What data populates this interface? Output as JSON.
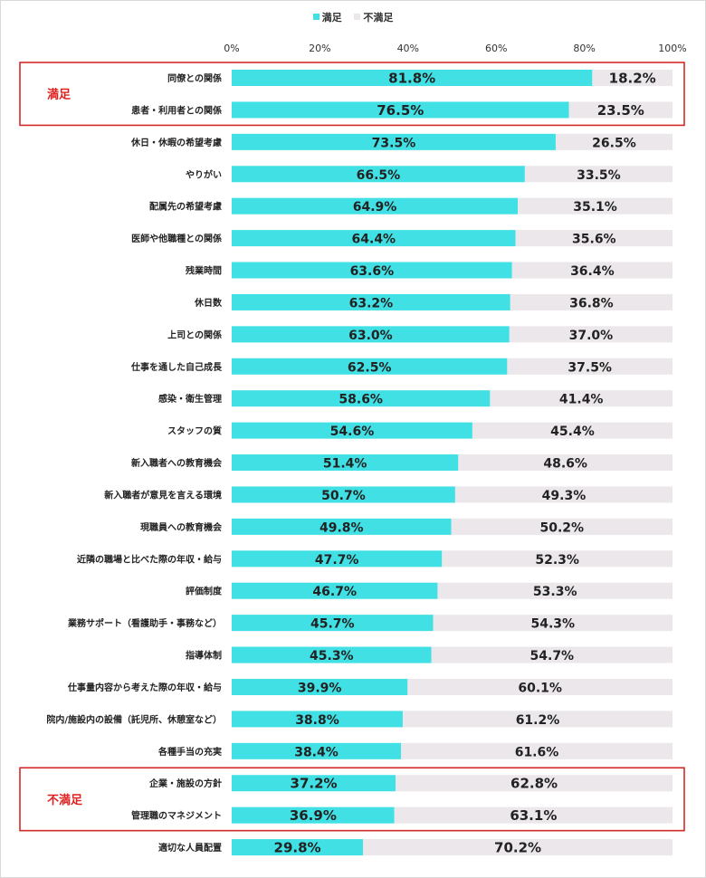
{
  "colors": {
    "sat": "#40e0e4",
    "unsat": "#ebe7ea",
    "highlight": "#d42a2a"
  },
  "legend": [
    {
      "label": "満足",
      "color": "#40e0e4",
      "icon": "square-swatch"
    },
    {
      "label": "不満足",
      "color": "#ebe7ea",
      "icon": "square-swatch"
    }
  ],
  "highlights": [
    {
      "label": "満足",
      "first": 0,
      "last": 1
    },
    {
      "label": "不満足",
      "first": 22,
      "last": 23
    }
  ],
  "chart_data": {
    "type": "bar",
    "orientation": "horizontal",
    "stacked": true,
    "percent": true,
    "xlim": [
      0,
      100
    ],
    "x_ticks": [
      "0%",
      "20%",
      "40%",
      "60%",
      "80%",
      "100%"
    ],
    "legend_position": "top-center",
    "grid": false,
    "categories": [
      "同僚との関係",
      "患者・利用者との関係",
      "休日・休暇の希望考慮",
      "やりがい",
      "配属先の希望考慮",
      "医師や他職種との関係",
      "残業時間",
      "休日数",
      "上司との関係",
      "仕事を通した自己成長",
      "感染・衛生管理",
      "スタッフの質",
      "新入職者への教育機会",
      "新入職者が意見を言える環境",
      "現職員への教育機会",
      "近隣の職場と比べた際の年収・給与",
      "評価制度",
      "業務サポート（看護助手・事務など）",
      "指導体制",
      "仕事量内容から考えた際の年収・給与",
      "院内/施設内の設備（託児所、休憩室など）",
      "各種手当の充実",
      "企業・施設の方針",
      "管理職のマネジメント",
      "適切な人員配置"
    ],
    "series": [
      {
        "name": "満足",
        "values": [
          81.8,
          76.5,
          73.5,
          66.5,
          64.9,
          64.4,
          63.6,
          63.2,
          63.0,
          62.5,
          58.6,
          54.6,
          51.4,
          50.7,
          49.8,
          47.7,
          46.7,
          45.7,
          45.3,
          39.9,
          38.8,
          38.4,
          37.2,
          36.9,
          29.8
        ],
        "labels": [
          "81.8%",
          "76.5%",
          "73.5%",
          "66.5%",
          "64.9%",
          "64.4%",
          "63.6%",
          "63.2%",
          "63.0%",
          "62.5%",
          "58.6%",
          "54.6%",
          "51.4%",
          "50.7%",
          "49.8%",
          "47.7%",
          "46.7%",
          "45.7%",
          "45.3%",
          "39.9%",
          "38.8%",
          "38.4%",
          "37.2%",
          "36.9%",
          "29.8%"
        ]
      },
      {
        "name": "不満足",
        "values": [
          18.2,
          23.5,
          26.5,
          33.5,
          35.1,
          35.6,
          36.4,
          36.8,
          37.0,
          37.5,
          41.4,
          45.4,
          48.6,
          49.3,
          50.2,
          52.3,
          53.3,
          54.3,
          54.7,
          60.1,
          61.2,
          61.6,
          62.8,
          63.1,
          70.2
        ],
        "labels": [
          "18.2%",
          "23.5%",
          "26.5%",
          "33.5%",
          "35.1%",
          "35.6%",
          "36.4%",
          "36.8%",
          "37.0%",
          "37.5%",
          "41.4%",
          "45.4%",
          "48.6%",
          "49.3%",
          "50.2%",
          "52.3%",
          "53.3%",
          "54.3%",
          "54.7%",
          "60.1%",
          "61.2%",
          "61.6%",
          "62.8%",
          "63.1%",
          "70.2%"
        ]
      }
    ]
  }
}
